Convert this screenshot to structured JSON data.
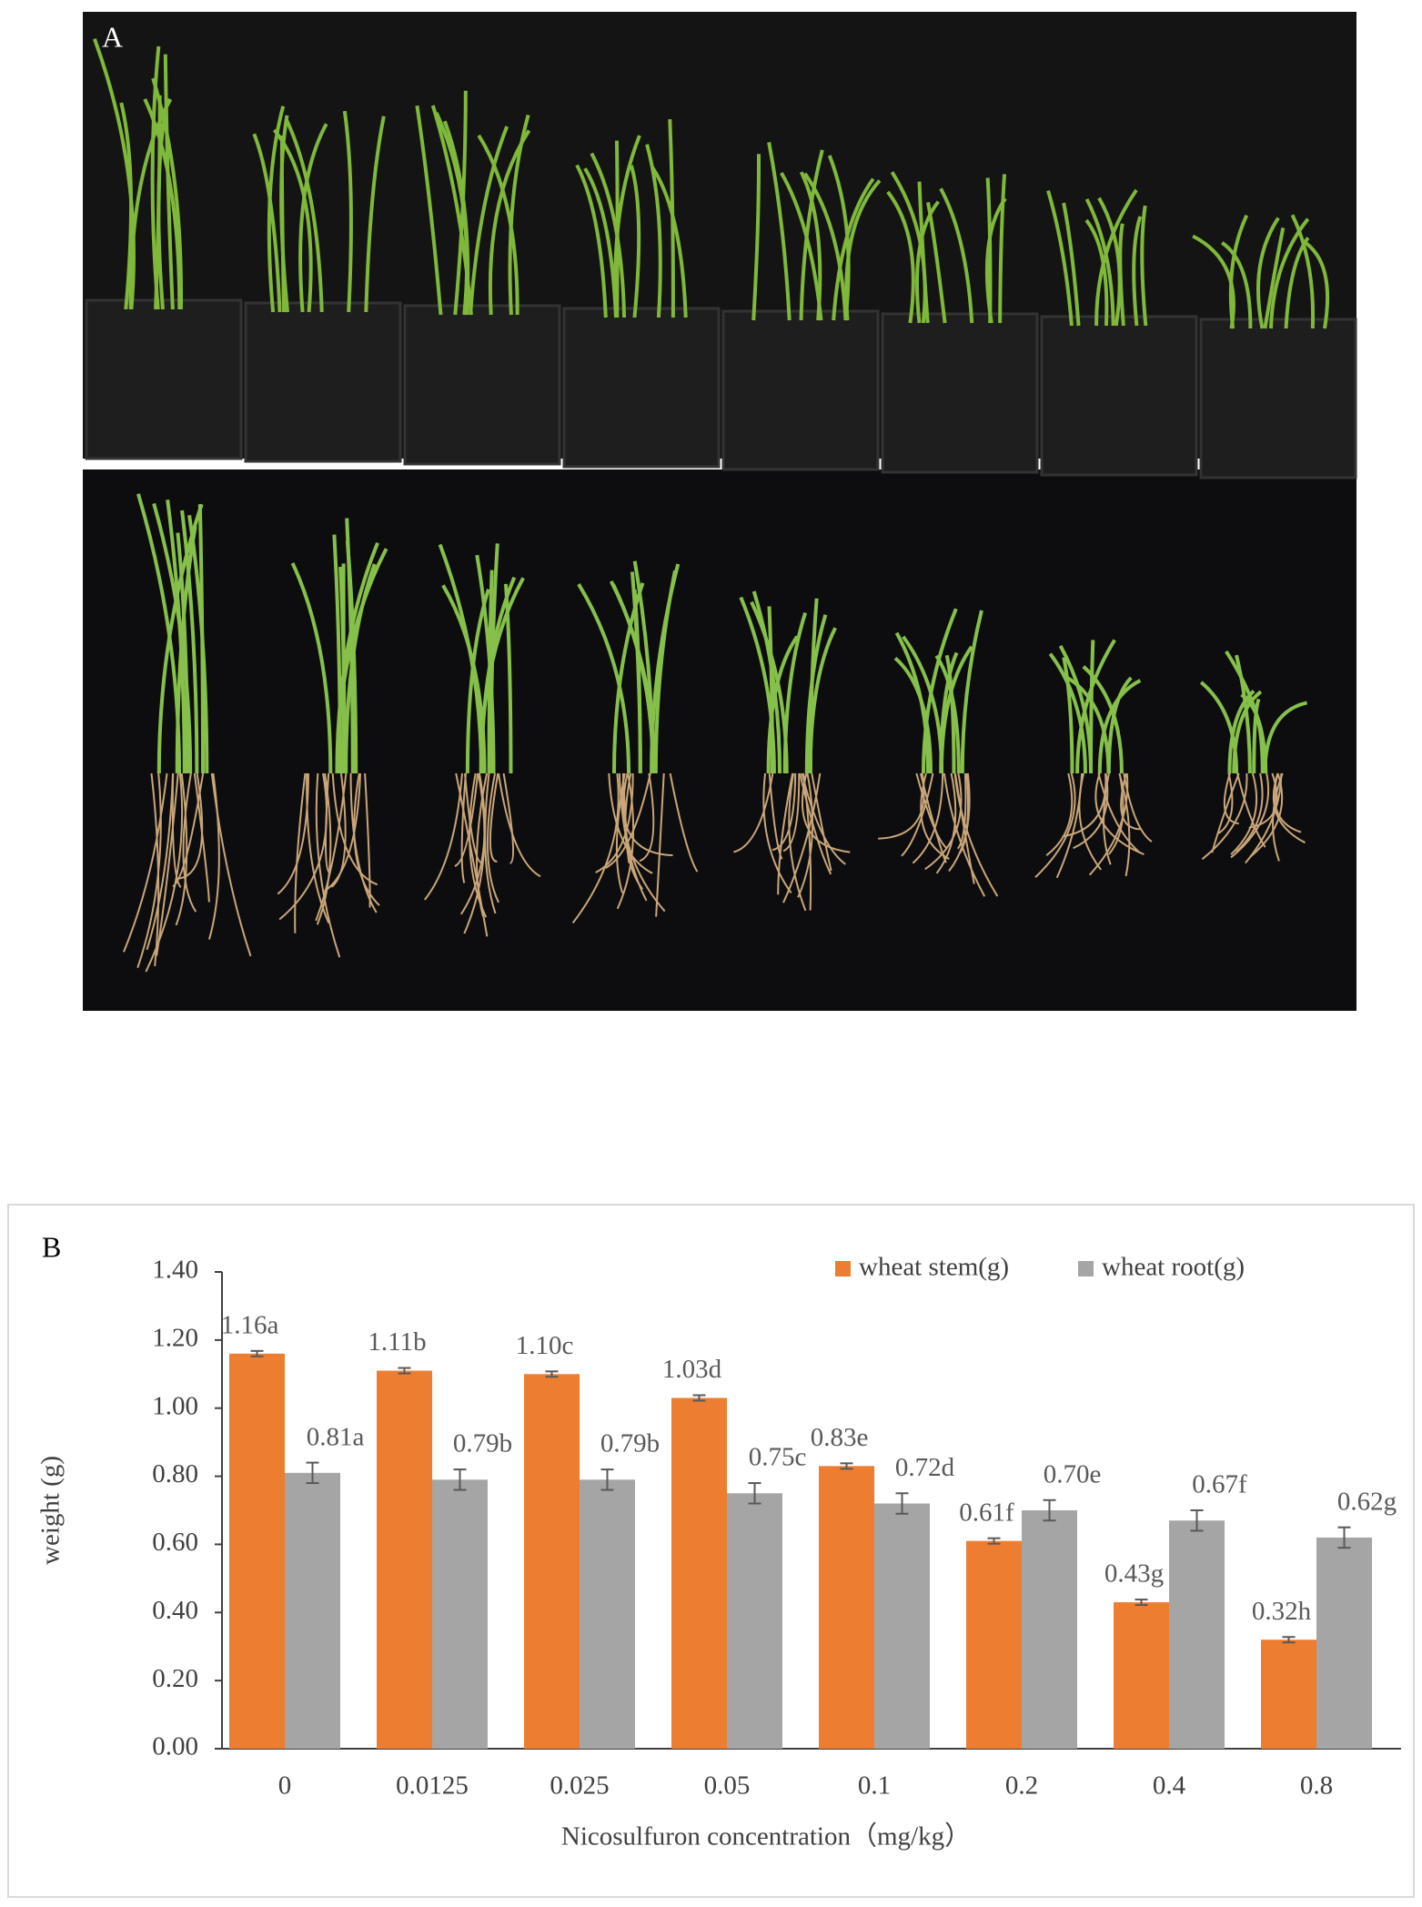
{
  "photo": {
    "label": "A"
  },
  "chart_data": {
    "type": "bar",
    "panel_label": "B",
    "x_label": "Nicosulfuron concentration（mg/kg）",
    "y_label": "weight (g)",
    "categories": [
      "0",
      "0.0125",
      "0.025",
      "0.05",
      "0.1",
      "0.2",
      "0.4",
      "0.8"
    ],
    "series": [
      {
        "name": "wheat stem(g)",
        "color": "#ED7D31",
        "values": [
          1.16,
          1.11,
          1.1,
          1.03,
          0.83,
          0.61,
          0.43,
          0.32
        ],
        "errors": [
          0.008,
          0.008,
          0.008,
          0.008,
          0.008,
          0.008,
          0.008,
          0.008
        ],
        "value_labels": [
          "1.16a",
          "1.11b",
          "1.10c",
          "1.03d",
          "0.83e",
          "0.61f",
          "0.43g",
          "0.32h"
        ]
      },
      {
        "name": "wheat root(g)",
        "color": "#A5A5A5",
        "values": [
          0.81,
          0.79,
          0.79,
          0.75,
          0.72,
          0.7,
          0.67,
          0.62
        ],
        "errors": [
          0.03,
          0.03,
          0.03,
          0.03,
          0.03,
          0.03,
          0.03,
          0.03
        ],
        "value_labels": [
          "0.81a",
          "0.79b",
          "0.79b",
          "0.75c",
          "0.72d",
          "0.70e",
          "0.67f",
          "0.62g"
        ]
      }
    ],
    "ylim": [
      0,
      1.4
    ],
    "yticks": [
      {
        "value": 0,
        "label": "0.00"
      },
      {
        "value": 0.2,
        "label": "0.20"
      },
      {
        "value": 0.4,
        "label": "0.40"
      },
      {
        "value": 0.6,
        "label": "0.60"
      },
      {
        "value": 0.8,
        "label": "0.80"
      },
      {
        "value": 1.0,
        "label": "1.00"
      },
      {
        "value": 1.2,
        "label": "1.20"
      },
      {
        "value": 1.4,
        "label": "1.40"
      }
    ],
    "grid": false,
    "legend": "top-right"
  }
}
